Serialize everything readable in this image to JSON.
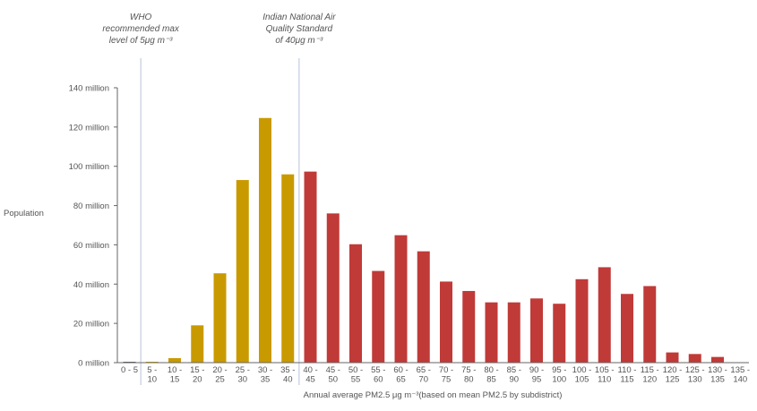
{
  "chart_data": {
    "type": "bar",
    "title": "",
    "xlabel": "Annual average PM2.5 μg m⁻³(based on mean PM2.5 by subdistrict)",
    "ylabel": "Population",
    "ylim": [
      0,
      140
    ],
    "y_unit_suffix": " million",
    "yticks": [
      0,
      20,
      40,
      60,
      80,
      100,
      120,
      140
    ],
    "ytick_labels": [
      "0 million",
      "20 million",
      "40 million",
      "60 million",
      "80 million",
      "100 million",
      "120 million",
      "140 million"
    ],
    "grid": false,
    "categories": [
      [
        "0 - 5",
        ""
      ],
      [
        "5 -",
        "10"
      ],
      [
        "10 -",
        "15"
      ],
      [
        "15 -",
        "20"
      ],
      [
        "20 -",
        "25"
      ],
      [
        "25 -",
        "30"
      ],
      [
        "30 -",
        "35"
      ],
      [
        "35 -",
        "40"
      ],
      [
        "40 -",
        "45"
      ],
      [
        "45 -",
        "50"
      ],
      [
        "50 -",
        "55"
      ],
      [
        "55 -",
        "60"
      ],
      [
        "60 -",
        "65"
      ],
      [
        "65 -",
        "70"
      ],
      [
        "70 -",
        "75"
      ],
      [
        "75 -",
        "80"
      ],
      [
        "80 -",
        "85"
      ],
      [
        "85 -",
        "90"
      ],
      [
        "90 -",
        "95"
      ],
      [
        "95 -",
        "100"
      ],
      [
        "100 -",
        "105"
      ],
      [
        "105 -",
        "110"
      ],
      [
        "110 -",
        "115"
      ],
      [
        "115 -",
        "120"
      ],
      [
        "120 -",
        "125"
      ],
      [
        "125 -",
        "130"
      ],
      [
        "130 -",
        "135"
      ],
      [
        "135 -",
        "140"
      ]
    ],
    "values": [
      0.3,
      0.3,
      2.3,
      19,
      45.5,
      93,
      124.6,
      95.9,
      97.3,
      76,
      60.3,
      46.7,
      64.9,
      56.7,
      41.3,
      36.5,
      30.7,
      30.7,
      32.7,
      30,
      42.5,
      48.6,
      35,
      39,
      5.2,
      4.4,
      2.9,
      0
    ],
    "bar_colors": {
      "below_who": "#555555",
      "below_national": "#c99a00",
      "above_national": "#c03a38"
    },
    "color_groups": [
      "below_who",
      "below_national",
      "below_national",
      "below_national",
      "below_national",
      "below_national",
      "below_national",
      "below_national",
      "above_national",
      "above_national",
      "above_national",
      "above_national",
      "above_national",
      "above_national",
      "above_national",
      "above_national",
      "above_national",
      "above_national",
      "above_national",
      "above_national",
      "above_national",
      "above_national",
      "above_national",
      "above_national",
      "above_national",
      "above_national",
      "above_national",
      "above_national"
    ],
    "annotations": [
      {
        "name": "who-guideline",
        "after_category_index": 0,
        "lines": [
          "WHO",
          "recommended  max",
          "level of 5μg m⁻³"
        ]
      },
      {
        "name": "national-standard",
        "after_category_index": 7,
        "lines": [
          "Indian National Air",
          "Quality Standard",
          "of 40μg m⁻³"
        ]
      }
    ],
    "reference_line_color": "#b8c0d8"
  }
}
